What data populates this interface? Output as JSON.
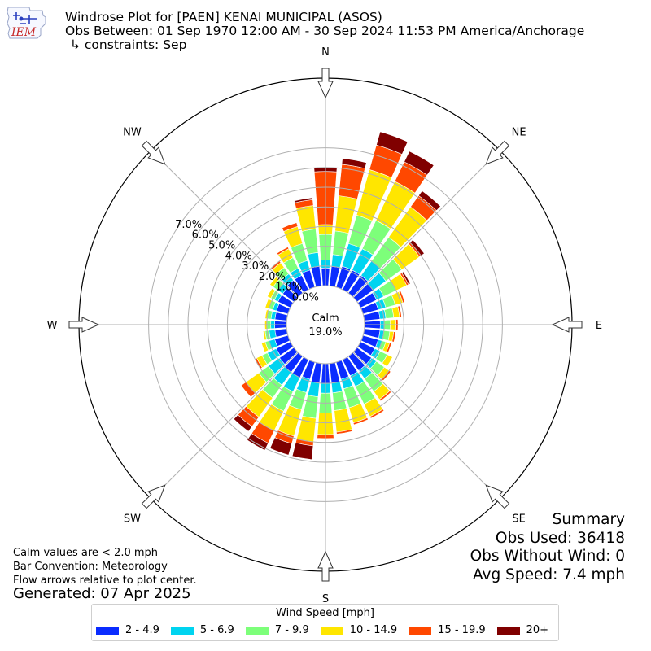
{
  "header": {
    "logo_text": "IEM",
    "title": "Windrose Plot for [PAEN] KENAI MUNICIPAL (ASOS)",
    "subtitle": "Obs Between: 01 Sep 1970 12:00 AM - 30 Sep 2024 11:53 PM America/Anchorage",
    "constraints": "↳ constraints: Sep"
  },
  "chart_data": {
    "type": "windrose",
    "direction_labels": [
      "N",
      "NE",
      "E",
      "SE",
      "S",
      "SW",
      "W",
      "NW"
    ],
    "radial_tick_labels": [
      "0.0%",
      "1.0%",
      "2.0%",
      "3.0%",
      "4.0%",
      "5.0%",
      "6.0%",
      "7.0%"
    ],
    "calm_label": "Calm",
    "calm_value": "19.0%",
    "legend_title": "Wind Speed [mph]",
    "speed_bins": [
      "2 - 4.9",
      "5 - 6.9",
      "7 - 9.9",
      "10 - 14.9",
      "15 - 19.9",
      "20+"
    ],
    "colors": [
      "#0a2cff",
      "#00d4f0",
      "#7dff7a",
      "#ffe600",
      "#ff4800",
      "#800000"
    ],
    "bar_convention": "meteorology",
    "sector_degrees": 10,
    "direction_degrees": [
      0,
      10,
      20,
      30,
      40,
      50,
      60,
      70,
      80,
      90,
      100,
      110,
      120,
      130,
      140,
      150,
      160,
      170,
      180,
      190,
      200,
      210,
      220,
      230,
      240,
      250,
      260,
      270,
      280,
      290,
      300,
      310,
      320,
      330,
      340,
      350
    ],
    "cumulative_percent": [
      [
        0.9,
        1.3,
        2.6,
        3.1,
        5.8,
        6.0
      ],
      [
        1.0,
        1.6,
        2.8,
        4.6,
        6.2,
        6.5
      ],
      [
        1.1,
        2.3,
        3.8,
        6.2,
        7.5,
        8.2
      ],
      [
        1.1,
        2.3,
        3.9,
        6.1,
        7.2,
        7.8
      ],
      [
        1.1,
        2.0,
        3.5,
        5.4,
        6.1,
        6.4
      ],
      [
        1.0,
        1.8,
        2.8,
        3.9,
        4.0,
        4.2
      ],
      [
        0.9,
        1.3,
        2.0,
        2.6,
        2.7,
        2.8
      ],
      [
        0.8,
        1.2,
        1.7,
        2.1,
        2.2,
        2.2
      ],
      [
        0.8,
        1.1,
        1.5,
        1.8,
        1.9,
        1.9
      ],
      [
        0.8,
        1.0,
        1.3,
        1.6,
        1.7,
        1.7
      ],
      [
        0.8,
        1.0,
        1.3,
        1.5,
        1.6,
        1.6
      ],
      [
        0.8,
        1.0,
        1.2,
        1.4,
        1.5,
        1.5
      ],
      [
        0.8,
        1.1,
        1.5,
        1.8,
        1.8,
        1.8
      ],
      [
        0.9,
        1.2,
        1.7,
        2.0,
        2.1,
        2.1
      ],
      [
        0.9,
        1.4,
        2.2,
        2.7,
        2.8,
        2.8
      ],
      [
        0.9,
        1.5,
        2.5,
        3.2,
        3.3,
        3.3
      ],
      [
        0.9,
        1.4,
        2.4,
        3.2,
        3.3,
        3.3
      ],
      [
        1.0,
        1.5,
        2.4,
        3.5,
        3.6,
        3.6
      ],
      [
        1.0,
        1.5,
        2.5,
        3.6,
        3.8,
        3.8
      ],
      [
        1.0,
        1.7,
        2.8,
        4.0,
        4.2,
        4.9
      ],
      [
        0.9,
        1.6,
        2.5,
        3.9,
        4.3,
        4.9
      ],
      [
        1.0,
        1.8,
        2.9,
        4.0,
        4.7,
        5.1
      ],
      [
        1.0,
        1.8,
        2.6,
        3.8,
        4.4,
        4.7
      ],
      [
        0.9,
        1.6,
        2.2,
        3.0,
        3.3,
        3.3
      ],
      [
        0.8,
        1.3,
        1.6,
        1.9,
        2.0,
        2.0
      ],
      [
        0.7,
        1.0,
        1.2,
        1.4,
        1.4,
        1.4
      ],
      [
        0.6,
        0.9,
        1.1,
        1.2,
        1.2,
        1.2
      ],
      [
        0.6,
        0.8,
        1.0,
        1.1,
        1.1,
        1.1
      ],
      [
        0.6,
        0.8,
        1.0,
        1.1,
        1.1,
        1.1
      ],
      [
        0.6,
        0.8,
        1.0,
        1.2,
        1.2,
        1.2
      ],
      [
        0.7,
        0.9,
        1.1,
        1.3,
        1.3,
        1.3
      ],
      [
        0.7,
        1.0,
        1.3,
        1.5,
        1.5,
        1.5
      ],
      [
        0.8,
        1.2,
        1.6,
        1.9,
        2.0,
        2.0
      ],
      [
        0.8,
        1.2,
        1.8,
        2.3,
        2.4,
        2.4
      ],
      [
        0.9,
        1.4,
        2.3,
        3.2,
        3.4,
        3.4
      ],
      [
        1.0,
        1.7,
        2.9,
        4.1,
        4.4,
        4.5
      ]
    ]
  },
  "notes": {
    "calm_note": "Calm values are < 2.0 mph",
    "bar_convention": "Bar Convention: Meteorology",
    "flow_note": "Flow arrows relative to plot center."
  },
  "generated": "Generated: 07 Apr 2025",
  "summary": {
    "title": "Summary",
    "obs_used": "Obs Used: 36418",
    "obs_without_wind": "Obs Without Wind: 0",
    "avg_speed": "Avg Speed: 7.4 mph"
  }
}
